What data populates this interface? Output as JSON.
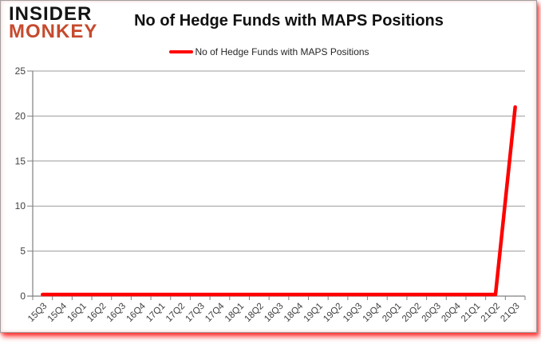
{
  "brand": {
    "line1": "INSIDER",
    "line2": "MONKEY",
    "line1_color": "#141414",
    "line2_color": "#c64a2e"
  },
  "header": {
    "title": "No of Hedge Funds with MAPS Positions"
  },
  "legend": {
    "label": "No of Hedge Funds with MAPS Positions"
  },
  "chart_data": {
    "type": "line",
    "title": "No of Hedge Funds with MAPS Positions",
    "categories": [
      "15Q3",
      "15Q4",
      "16Q1",
      "16Q2",
      "16Q3",
      "16Q4",
      "17Q1",
      "17Q2",
      "17Q3",
      "17Q4",
      "18Q1",
      "18Q2",
      "18Q3",
      "18Q4",
      "19Q1",
      "19Q2",
      "19Q3",
      "19Q4",
      "20Q1",
      "20Q2",
      "20Q3",
      "20Q4",
      "21Q1",
      "21Q2",
      "21Q3"
    ],
    "series": [
      {
        "name": "No of Hedge Funds with MAPS Positions",
        "color": "#ff0000",
        "values": [
          0,
          0,
          0,
          0,
          0,
          0,
          0,
          0,
          0,
          0,
          0,
          0,
          0,
          0,
          0,
          0,
          0,
          0,
          0,
          0,
          0,
          0,
          0,
          0,
          21
        ]
      }
    ],
    "xlabel": "",
    "ylabel": "",
    "ylim": [
      0,
      25
    ],
    "yticks": [
      0,
      5,
      10,
      15,
      20,
      25
    ],
    "grid": true,
    "legend_position": "top"
  },
  "style_colors": {
    "axis": "#808080",
    "gridline": "#9b9b9b",
    "tick_label": "#3f3f3f",
    "glow": "#ff0000"
  }
}
